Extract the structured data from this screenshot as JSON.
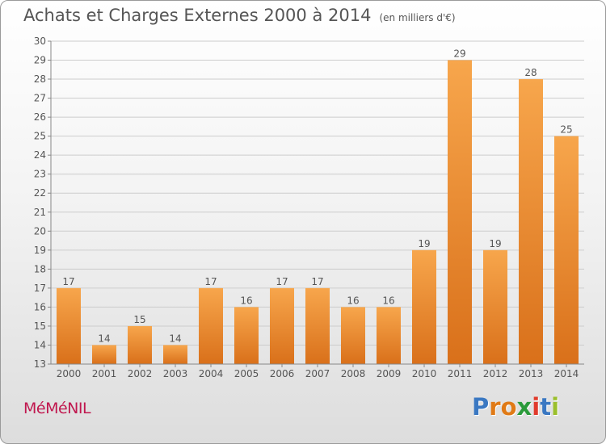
{
  "header": {
    "title": "Achats et Charges Externes 2000 à 2014",
    "unit": "(en milliers d'€)"
  },
  "footer": {
    "place": "MéMéNIL",
    "brand": "Proxiti",
    "brand_colors": [
      "#3a78c2",
      "#e07a16",
      "#e07a16",
      "#2a9a3a",
      "#e03b2c",
      "#3a78c2",
      "#9bbf2c"
    ]
  },
  "colors": {
    "bar_top": "#f7a64c",
    "bar_bottom": "#d9701a",
    "grid": "#cccccc",
    "axis_text": "#555555"
  },
  "chart_data": {
    "type": "bar",
    "title": "Achats et Charges Externes 2000 à 2014",
    "categories": [
      "2000",
      "2001",
      "2002",
      "2003",
      "2004",
      "2005",
      "2006",
      "2007",
      "2008",
      "2009",
      "2010",
      "2011",
      "2012",
      "2013",
      "2014"
    ],
    "values": [
      17,
      14,
      15,
      14,
      17,
      16,
      17,
      17,
      16,
      16,
      19,
      29,
      19,
      28,
      25
    ],
    "ylim": [
      13,
      30
    ],
    "yticks": [
      13,
      14,
      15,
      16,
      17,
      18,
      19,
      20,
      21,
      22,
      23,
      24,
      25,
      26,
      27,
      28,
      29,
      30
    ],
    "grid": true,
    "data_labels": true
  }
}
